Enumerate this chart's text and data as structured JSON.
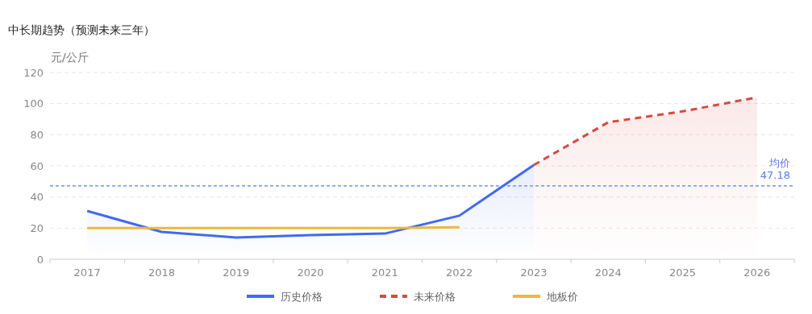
{
  "chart_data": {
    "type": "area",
    "title": "中长期趋势（预测未来三年）",
    "ylabel": "元/公斤",
    "categories": [
      "2017",
      "2018",
      "2019",
      "2020",
      "2021",
      "2022",
      "2023",
      "2024",
      "2025",
      "2026"
    ],
    "series": [
      {
        "name": "历史价格",
        "color": "#4169f5",
        "values": [
          31,
          17.6,
          14,
          15.5,
          16.5,
          28,
          60.5,
          null,
          null,
          null
        ]
      },
      {
        "name": "未来价格",
        "color": "#d64a43",
        "line_style": "dashed",
        "values": [
          null,
          null,
          null,
          null,
          null,
          null,
          60.5,
          88,
          95,
          104
        ]
      },
      {
        "name": "地板价",
        "type": "line",
        "color": "#ecb93e",
        "values": [
          20,
          20,
          20,
          20,
          20,
          20.5,
          null,
          null,
          null,
          null
        ]
      }
    ],
    "ylim": [
      0,
      120
    ],
    "yticks": [
      0,
      20,
      40,
      60,
      80,
      100,
      120
    ],
    "grid": "y",
    "legend": "bottom",
    "ref_lines": [
      {
        "axis": "y",
        "value": 47.18,
        "label": "均价\n47.18",
        "color": "#5b7be8",
        "line_style": "dashed"
      }
    ]
  }
}
